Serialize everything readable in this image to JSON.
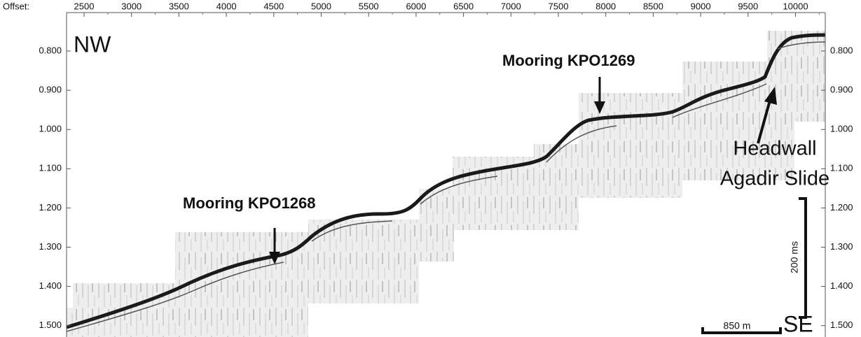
{
  "axes": {
    "offset_label": "Offset:",
    "offset_ticks": [
      "2500",
      "3000",
      "3500",
      "4000",
      "4500",
      "5000",
      "5500",
      "6000",
      "6500",
      "7000",
      "7500",
      "8000",
      "8500",
      "9000",
      "9500",
      "10000"
    ],
    "time_ticks": [
      "0.800",
      "0.900",
      "1.000",
      "1.100",
      "1.200",
      "1.300",
      "1.400",
      "1.500"
    ]
  },
  "labels": {
    "nw": "NW",
    "se": "SE",
    "mooring_1": "Mooring KPO1268",
    "mooring_2": "Mooring KPO1269",
    "headwall": [
      "Headwall",
      "Agadir Slide"
    ]
  },
  "scale_bars": {
    "time": "200 ms",
    "distance": "850 m"
  }
}
